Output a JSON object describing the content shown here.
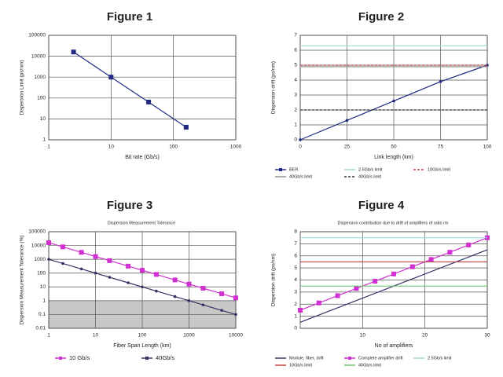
{
  "chart_data": [
    {
      "type": "line",
      "title": "Figure 1",
      "x_label": "Bit rate (Gb/s)",
      "y_label": "Dispersion Limit (ps/nm)",
      "xlog": true,
      "ylog": true,
      "xlim": [
        1,
        1000
      ],
      "ylim": [
        1,
        100000
      ],
      "xticks": [
        1,
        10,
        100,
        1000
      ],
      "yticks": [
        1,
        10,
        100,
        1000,
        10000,
        100000
      ],
      "grid": true,
      "series": [
        {
          "color": "#1f2a80",
          "marker": "square",
          "x": [
            2.5,
            10,
            40,
            160
          ],
          "values": [
            16000,
            1000,
            64,
            4
          ]
        }
      ]
    },
    {
      "type": "line",
      "title": "Figure 2",
      "x_label": "Link length (km)",
      "y_label": "Dispersion drift (ps/nm)",
      "xlim": [
        0,
        100
      ],
      "ylim": [
        0,
        7
      ],
      "xticks": [
        0,
        25,
        50,
        75,
        100
      ],
      "yticks": [
        0,
        1,
        2,
        3,
        4,
        5,
        6,
        7
      ],
      "grid": true,
      "series": [
        {
          "name": "BER",
          "color": "#1f2a80",
          "marker": "circle",
          "x": [
            0,
            25,
            50,
            75,
            100
          ],
          "values": [
            0,
            1.3,
            2.6,
            3.9,
            5.0
          ]
        },
        {
          "name": "2.5Gb/s limit",
          "color": "#9fd8d8",
          "x": [
            0,
            100
          ],
          "values": [
            6.3,
            6.3
          ]
        },
        {
          "name": "10Gb/s limit",
          "color": "#c04040",
          "dash": true,
          "x": [
            0,
            100
          ],
          "values": [
            5.0,
            5.0
          ]
        },
        {
          "name": "40Gb/s limit",
          "color": "#909090",
          "x": [
            0,
            100
          ],
          "values": [
            4.9,
            4.9
          ]
        },
        {
          "name": "40Gb/s limit",
          "color": "#333333",
          "dash": true,
          "x": [
            0,
            100
          ],
          "values": [
            2.0,
            2.0
          ]
        }
      ]
    },
    {
      "type": "line",
      "title": "Figure 3",
      "subtitle": "Dispersion Measurement Tolerance",
      "x_label": "Fiber Span Length (km)",
      "y_label": "Dispersion Measurement Tolerance (%)",
      "xlog": true,
      "ylog": true,
      "xlim": [
        1,
        10000
      ],
      "ylim": [
        0.01,
        100000
      ],
      "xticks": [
        1,
        10,
        100,
        1000,
        10000
      ],
      "yticks": [
        0.01,
        0.1,
        1,
        10,
        100,
        1000,
        10000,
        100000
      ],
      "grid": true,
      "shade": [
        0.01,
        1
      ],
      "series": [
        {
          "name": "10 Gb/s",
          "color": "#d030d0",
          "marker": "square",
          "x": [
            1,
            2,
            5,
            10,
            20,
            50,
            100,
            200,
            500,
            1000,
            2000,
            5000,
            10000
          ],
          "values": [
            16000,
            8000,
            3200,
            1600,
            800,
            320,
            160,
            80,
            32,
            16,
            8,
            3.2,
            1.6
          ]
        },
        {
          "name": "40Gb/s",
          "color": "#333366",
          "marker": "circle",
          "x": [
            1,
            2,
            5,
            10,
            20,
            50,
            100,
            200,
            500,
            1000,
            2000,
            5000,
            10000
          ],
          "values": [
            1000,
            500,
            200,
            100,
            50,
            20,
            10,
            5,
            2,
            1,
            0.5,
            0.2,
            0.1
          ]
        }
      ]
    },
    {
      "type": "line",
      "title": "Figure 4",
      "subtitle": "Dispersion contribution due to drift of amplifiers of ratio rm",
      "x_label": "No of amplifiers",
      "y_label": "Dispersion drift (ps/nm)",
      "xlim": [
        0,
        30
      ],
      "ylim": [
        0,
        8
      ],
      "xticks": [
        10,
        20,
        30
      ],
      "yticks": [
        0,
        1,
        2,
        3,
        4,
        5,
        6,
        7,
        8
      ],
      "grid": true,
      "series": [
        {
          "name": "Module, fiber, drift",
          "color": "#333366",
          "x": [
            0,
            30
          ],
          "values": [
            0.5,
            6.5
          ]
        },
        {
          "name": "Complete amplifier drift",
          "color": "#d030d0",
          "marker": "square",
          "x": [
            0,
            3,
            6,
            9,
            12,
            15,
            18,
            21,
            24,
            27,
            30
          ],
          "values": [
            1.5,
            2.1,
            2.7,
            3.3,
            3.9,
            4.5,
            5.1,
            5.7,
            6.3,
            6.9,
            7.5
          ]
        },
        {
          "name": "2.5Gb/s limit",
          "color": "#9fd8d8",
          "x": [
            0,
            30
          ],
          "values": [
            7.5,
            7.5
          ]
        },
        {
          "name": "10Gb/s limit",
          "color": "#c04040",
          "x": [
            0,
            30
          ],
          "values": [
            5.5,
            5.5
          ]
        },
        {
          "name": "40Gb/s limit",
          "color": "#70c070",
          "x": [
            0,
            30
          ],
          "values": [
            3.5,
            3.5
          ]
        }
      ]
    }
  ]
}
